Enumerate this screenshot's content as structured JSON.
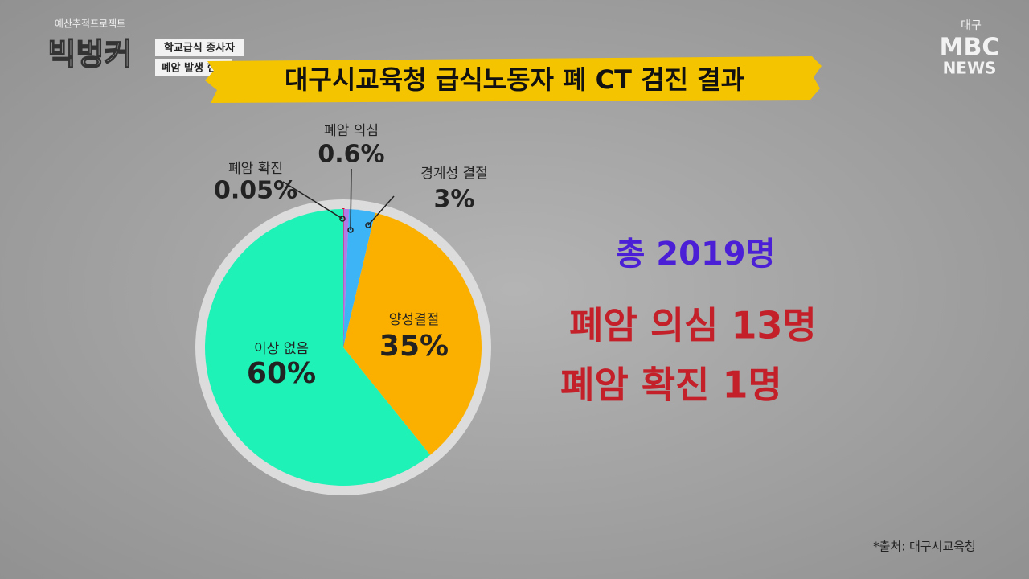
{
  "chart_data": {
    "type": "pie",
    "title": "대구시교육청 급식노동자 폐 CT 검진 결과",
    "categories": [
      "폐암 확진",
      "폐암 의심",
      "경계성 결절",
      "양성결절",
      "이상 없음"
    ],
    "values": [
      0.05,
      0.6,
      3,
      35,
      60
    ],
    "value_labels": [
      "0.05%",
      "0.6%",
      "3%",
      "35%",
      "60%"
    ],
    "colors": [
      "#f06a8a",
      "#b27ae6",
      "#3cb4f5",
      "#fbb000",
      "#1ef2b6"
    ]
  },
  "overlay": {
    "program_tag": "예산추적프로젝트",
    "program": "빅벙커",
    "topic_line1": "학교급식 종사자",
    "topic_line2": "폐암 발생 현황",
    "station_region": "대구",
    "station_logo": "MBC",
    "station_news": "NEWS",
    "summary": [
      "총 2019명",
      "폐암 의심 13명",
      "폐암 확진 1명"
    ],
    "source": "*출처: 대구시교육청"
  }
}
